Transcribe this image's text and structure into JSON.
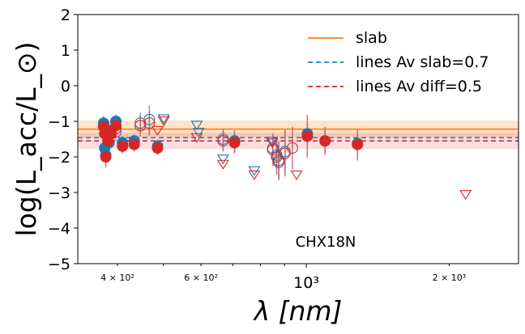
{
  "chart_data": {
    "type": "scatter",
    "xlabel": "λ [nm]",
    "ylabel": "log(L_acc/L_⊙)",
    "annotation": "CHX18N",
    "xscale": "log",
    "xlim": [
      330,
      2800
    ],
    "ylim": [
      -5,
      2
    ],
    "yticks": [
      -5,
      -4,
      -3,
      -2,
      -1,
      0,
      1,
      2
    ],
    "ytick_labels": [
      "−5",
      "−4",
      "−3",
      "−2",
      "−1",
      "0",
      "1",
      "2"
    ],
    "xticks": [
      {
        "value": 400,
        "label": "4 × 10²",
        "major": false
      },
      {
        "value": 600,
        "label": "6 × 10²",
        "major": false
      },
      {
        "value": 1000,
        "label": "10³",
        "major": true
      },
      {
        "value": 2000,
        "label": "2 × 10³",
        "major": false
      }
    ],
    "xminor_unlabeled": [
      500,
      700,
      800,
      900
    ],
    "legend": {
      "position": "top-right",
      "entries": [
        {
          "label": "slab",
          "color": "#ff7f0e",
          "style": "solid"
        },
        {
          "label": "lines Av slab=0.7",
          "color": "#1f77b4",
          "style": "dashed"
        },
        {
          "label": "lines Av diff=0.5",
          "color": "#d62728",
          "style": "dashed"
        }
      ]
    },
    "lines": {
      "slab": {
        "y": -1.22,
        "band": [
          -1.45,
          -0.98
        ],
        "color": "#ff7f0e"
      },
      "lines_av_slab": {
        "y": -1.46,
        "color": "#1f77b4"
      },
      "lines_av_diff": {
        "y": -1.55,
        "band": [
          -1.78,
          -1.32
        ],
        "color": "#d62728"
      }
    },
    "series": [
      {
        "color": "#1f77b4",
        "filled": [
          {
            "x": 374,
            "y": -1.05,
            "err": 0.2
          },
          {
            "x": 376,
            "y": -1.75,
            "err": 0.3
          },
          {
            "x": 378,
            "y": -1.95,
            "err": 0.25
          },
          {
            "x": 381,
            "y": -1.25,
            "err": 0.2
          },
          {
            "x": 384,
            "y": -1.6,
            "err": 0.2
          },
          {
            "x": 397,
            "y": -1.0,
            "err": 0.2
          },
          {
            "x": 410,
            "y": -1.6,
            "err": 0.2
          },
          {
            "x": 434,
            "y": -1.55,
            "err": 0.2
          },
          {
            "x": 486,
            "y": -1.7,
            "err": 0.2
          },
          {
            "x": 706,
            "y": -1.55,
            "err": 0.3
          },
          {
            "x": 1005,
            "y": -1.35,
            "err": 0.3
          },
          {
            "x": 1095,
            "y": -1.55,
            "err": 0.3
          },
          {
            "x": 1282,
            "y": -1.62,
            "err": 0.3
          }
        ],
        "open": [
          {
            "x": 397,
            "y": -1.3,
            "err": 0.25
          },
          {
            "x": 447,
            "y": -1.05,
            "err": 0.3
          },
          {
            "x": 467,
            "y": -0.95,
            "err": 0.4
          },
          {
            "x": 668,
            "y": -1.5,
            "err": 0.3
          },
          {
            "x": 850,
            "y": -1.75,
            "err": 0.4
          },
          {
            "x": 866,
            "y": -1.95,
            "err": 0.4
          },
          {
            "x": 875,
            "y": -2.15,
            "err": 0.5
          },
          {
            "x": 902,
            "y": -1.85,
            "err": 0.6
          }
        ],
        "upper_limits": [
          {
            "x": 501,
            "y": -0.92
          },
          {
            "x": 588,
            "y": -1.1
          },
          {
            "x": 593,
            "y": -1.3
          },
          {
            "x": 668,
            "y": -2.05
          },
          {
            "x": 777,
            "y": -2.38
          },
          {
            "x": 848,
            "y": -1.55
          }
        ]
      },
      {
        "color": "#d62728",
        "filled": [
          {
            "x": 374,
            "y": -1.15,
            "err": 0.2
          },
          {
            "x": 376,
            "y": -1.35,
            "err": 0.2
          },
          {
            "x": 378,
            "y": -2.0,
            "err": 0.3
          },
          {
            "x": 382,
            "y": -1.55,
            "err": 0.3
          },
          {
            "x": 388,
            "y": -1.35,
            "err": 0.2
          },
          {
            "x": 397,
            "y": -1.12,
            "err": 0.25
          },
          {
            "x": 410,
            "y": -1.7,
            "err": 0.2
          },
          {
            "x": 434,
            "y": -1.65,
            "err": 0.2
          },
          {
            "x": 486,
            "y": -1.75,
            "err": 0.2
          },
          {
            "x": 706,
            "y": -1.6,
            "err": 0.3
          },
          {
            "x": 1005,
            "y": -1.42,
            "err": 0.6
          },
          {
            "x": 1095,
            "y": -1.55,
            "err": 0.4
          },
          {
            "x": 1282,
            "y": -1.65,
            "err": 0.45
          }
        ],
        "open": [
          {
            "x": 383,
            "y": -1.3,
            "err": 0.25
          },
          {
            "x": 397,
            "y": -1.2,
            "err": 0.25
          },
          {
            "x": 447,
            "y": -1.12,
            "err": 0.3
          },
          {
            "x": 467,
            "y": -1.05,
            "err": 0.35
          },
          {
            "x": 668,
            "y": -1.55,
            "err": 0.3
          },
          {
            "x": 850,
            "y": -1.8,
            "err": 0.45
          },
          {
            "x": 866,
            "y": -2.0,
            "err": 0.5
          },
          {
            "x": 875,
            "y": -2.1,
            "err": 0.55
          },
          {
            "x": 902,
            "y": -1.9,
            "err": 0.65
          },
          {
            "x": 935,
            "y": -1.75,
            "err": 0.6
          }
        ],
        "upper_limits": [
          {
            "x": 486,
            "y": -1.25
          },
          {
            "x": 501,
            "y": -0.98
          },
          {
            "x": 588,
            "y": -1.45
          },
          {
            "x": 668,
            "y": -2.2
          },
          {
            "x": 777,
            "y": -2.5
          },
          {
            "x": 848,
            "y": -1.6
          },
          {
            "x": 954,
            "y": -2.5
          },
          {
            "x": 2166,
            "y": -3.05
          }
        ]
      }
    ]
  }
}
